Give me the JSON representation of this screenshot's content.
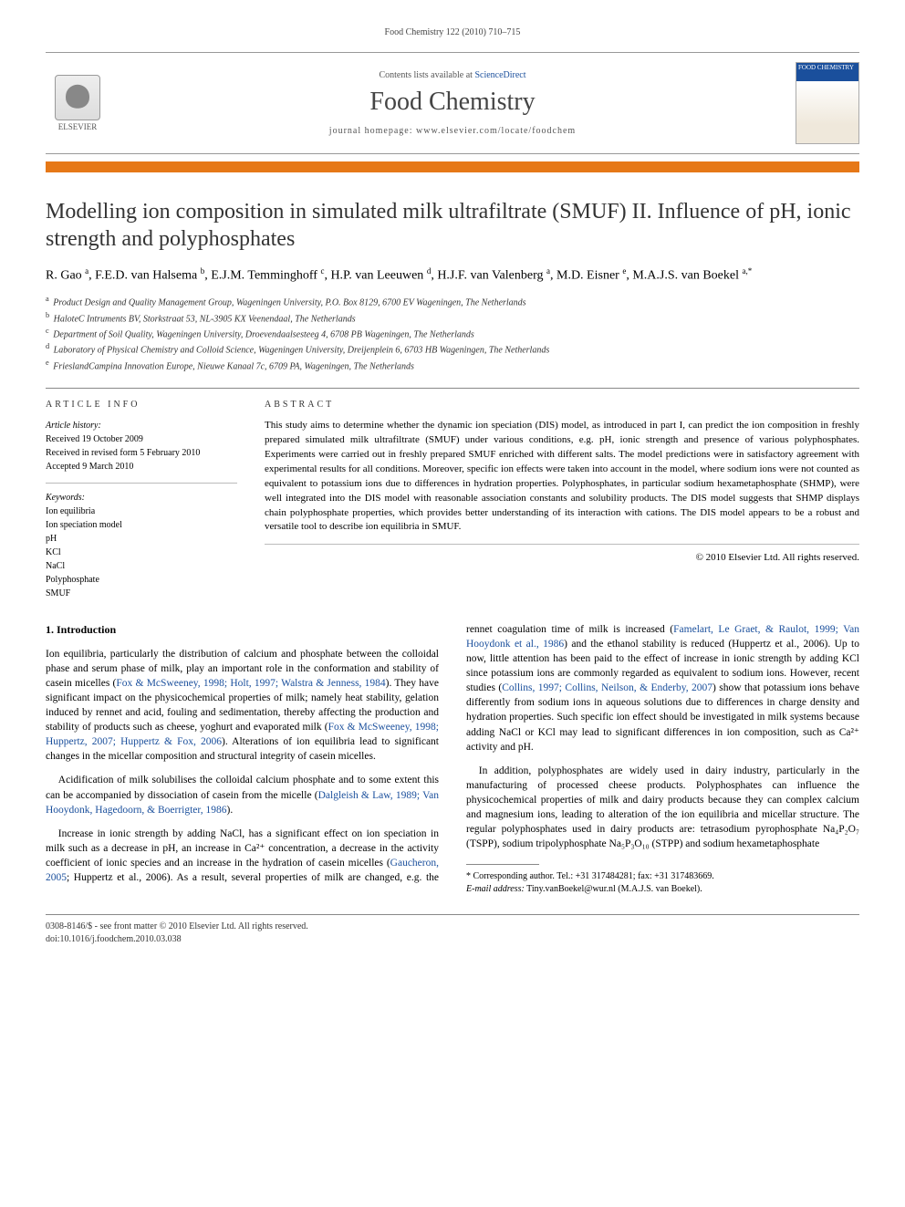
{
  "running_head": "Food Chemistry 122 (2010) 710–715",
  "header": {
    "contents_prefix": "Contents lists available at ",
    "contents_link": "ScienceDirect",
    "journal_name": "Food Chemistry",
    "homepage_prefix": "journal homepage: ",
    "homepage_url": "www.elsevier.com/locate/foodchem",
    "publisher_label": "ELSEVIER",
    "cover_label": "FOOD CHEMISTRY"
  },
  "title": "Modelling ion composition in simulated milk ultrafiltrate (SMUF) II. Influence of pH, ionic strength and polyphosphates",
  "authors_html": "R. Gao <sup>a</sup>, F.E.D. van Halsema <sup>b</sup>, E.J.M. Temminghoff <sup>c</sup>, H.P. van Leeuwen <sup>d</sup>, H.J.F. van Valenberg <sup>a</sup>, M.D. Eisner <sup>e</sup>, M.A.J.S. van Boekel <sup>a,*</sup>",
  "affiliations": [
    {
      "sup": "a",
      "text": "Product Design and Quality Management Group, Wageningen University, P.O. Box 8129, 6700 EV Wageningen, The Netherlands"
    },
    {
      "sup": "b",
      "text": "HaloteC Intruments BV, Storkstraat 53, NL-3905 KX Veenendaal, The Netherlands"
    },
    {
      "sup": "c",
      "text": "Department of Soil Quality, Wageningen University, Droevendaalsesteeg 4, 6708 PB Wageningen, The Netherlands"
    },
    {
      "sup": "d",
      "text": "Laboratory of Physical Chemistry and Colloid Science, Wageningen University, Dreijenplein 6, 6703 HB Wageningen, The Netherlands"
    },
    {
      "sup": "e",
      "text": "FrieslandCampina Innovation Europe, Nieuwe Kanaal 7c, 6709 PA, Wageningen, The Netherlands"
    }
  ],
  "info_heading": "ARTICLE INFO",
  "abstract_heading": "ABSTRACT",
  "history": {
    "label": "Article history:",
    "lines": [
      "Received 19 October 2009",
      "Received in revised form 5 February 2010",
      "Accepted 9 March 2010"
    ]
  },
  "keywords": {
    "label": "Keywords:",
    "items": [
      "Ion equilibria",
      "Ion speciation model",
      "pH",
      "KCl",
      "NaCl",
      "Polyphosphate",
      "SMUF"
    ]
  },
  "abstract": "This study aims to determine whether the dynamic ion speciation (DIS) model, as introduced in part I, can predict the ion composition in freshly prepared simulated milk ultrafiltrate (SMUF) under various conditions, e.g. pH, ionic strength and presence of various polyphosphates. Experiments were carried out in freshly prepared SMUF enriched with different salts. The model predictions were in satisfactory agreement with experimental results for all conditions. Moreover, specific ion effects were taken into account in the model, where sodium ions were not counted as equivalent to potassium ions due to differences in hydration properties. Polyphosphates, in particular sodium hexametaphosphate (SHMP), were well integrated into the DIS model with reasonable association constants and solubility products. The DIS model suggests that SHMP displays chain polyphosphate properties, which provides better understanding of its interaction with cations. The DIS model appears to be a robust and versatile tool to describe ion equilibria in SMUF.",
  "abstract_copyright": "© 2010 Elsevier Ltd. All rights reserved.",
  "section1_heading": "1. Introduction",
  "body": {
    "p1a": "Ion equilibria, particularly the distribution of calcium and phosphate between the colloidal phase and serum phase of milk, play an important role in the conformation and stability of casein micelles (",
    "p1_ref1": "Fox & McSweeney, 1998; Holt, 1997; Walstra & Jenness, 1984",
    "p1b": "). They have significant impact on the physicochemical properties of milk; namely heat stability, gelation induced by rennet and acid, fouling and sedimentation, thereby affecting the production and stability of products such as cheese, yoghurt and evaporated milk (",
    "p1_ref2": "Fox & McSweeney, 1998; Huppertz, 2007; Huppertz & Fox, 2006",
    "p1c": "). Alterations of ion equilibria lead to significant changes in the micellar composition and structural integrity of casein micelles.",
    "p2a": "Acidification of milk solubilises the colloidal calcium phosphate and to some extent this can be accompanied by dissociation of casein from the micelle (",
    "p2_ref": "Dalgleish & Law, 1989; Van Hooydonk, Hagedoorn, & Boerrigter, 1986",
    "p2b": ").",
    "p3": "Increase in ionic strength by adding NaCl, has a significant effect on ion speciation in milk such as a decrease in pH, an increase in ",
    "p4a": "Ca²⁺ concentration, a decrease in the activity coefficient of ionic species and an increase in the hydration of casein micelles (",
    "p4_ref1": "Gaucheron, 2005",
    "p4b": "; Huppertz et al., 2006). As a result, several properties of milk are changed, e.g. the rennet coagulation time of milk is increased (",
    "p4_ref2": "Famelart, Le Graet, & Raulot, 1999; Van Hooydonk et al., 1986",
    "p4c": ") and the ethanol stability is reduced (Huppertz et al., 2006). Up to now, little attention has been paid to the effect of increase in ionic strength by adding KCl since potassium ions are commonly regarded as equivalent to sodium ions. However, recent studies (",
    "p4_ref3": "Collins, 1997; Collins, Neilson, & Enderby, 2007",
    "p4d": ") show that potassium ions behave differently from sodium ions in aqueous solutions due to differences in charge density and hydration properties. Such specific ion effect should be investigated in milk systems because adding NaCl or KCl may lead to significant differences in ion composition, such as Ca²⁺ activity and pH.",
    "p5": "In addition, polyphosphates are widely used in dairy industry, particularly in the manufacturing of processed cheese products. Polyphosphates can influence the physicochemical properties of milk and dairy products because they can complex calcium and magnesium ions, leading to alteration of the ion equilibria and micellar structure. The regular polyphosphates used in dairy products are: tetrasodium pyrophosphate Na₄P₂O₇ (TSPP), sodium tripolyphosphate Na₅P₃O₁₀ (STPP) and sodium hexametaphosphate"
  },
  "corr": {
    "line1": "* Corresponding author. Tel.: +31 317484281; fax: +31 317483669.",
    "email_label": "E-mail address:",
    "email": "Tiny.vanBoekel@wur.nl",
    "name": "(M.A.J.S. van Boekel)."
  },
  "footer": {
    "line1": "0308-8146/$ - see front matter © 2010 Elsevier Ltd. All rights reserved.",
    "line2": "doi:10.1016/j.foodchem.2010.03.038"
  },
  "colors": {
    "orange": "#e67817",
    "link": "#1a4f9c",
    "rule": "#888888"
  }
}
